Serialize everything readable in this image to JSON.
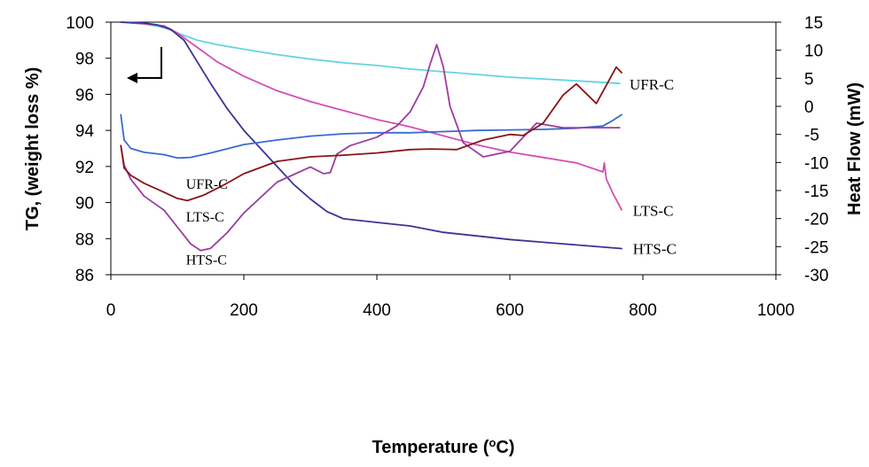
{
  "chart_data": {
    "type": "line",
    "xlabel": "Temperature (°C)",
    "xlabel_main": "Temperature (",
    "xlabel_sup": "o",
    "xlabel_end": "C)",
    "ylabel": "TG, (weight loss %)",
    "y2label": "Heat Flow (mW)",
    "xlim": [
      0,
      1000
    ],
    "ylim": [
      86,
      100
    ],
    "y2lim": [
      -30,
      15
    ],
    "x_ticks": [
      "0",
      "200",
      "400",
      "600",
      "800",
      "1000"
    ],
    "y_ticks": [
      "86",
      "88",
      "90",
      "92",
      "94",
      "96",
      "98",
      "100"
    ],
    "y2_ticks": [
      "-30",
      "-25",
      "-20",
      "-15",
      "-10",
      "-5",
      "0",
      "5",
      "10",
      "15"
    ],
    "grid": false,
    "legend": "none",
    "series": [
      {
        "name": "UFR-C",
        "kind": "TG",
        "axis": "left",
        "color": "#66d3e0",
        "x": [
          15,
          50,
          80,
          100,
          130,
          160,
          200,
          250,
          300,
          350,
          400,
          450,
          500,
          550,
          600,
          650,
          700,
          765
        ],
        "y": [
          100,
          99.9,
          99.7,
          99.4,
          99.0,
          98.75,
          98.5,
          98.2,
          97.95,
          97.75,
          97.6,
          97.4,
          97.25,
          97.1,
          96.95,
          96.85,
          96.75,
          96.6
        ]
      },
      {
        "name": "LTS-C",
        "kind": "TG",
        "axis": "left",
        "color": "#d24fb4",
        "x": [
          15,
          50,
          80,
          100,
          130,
          160,
          200,
          250,
          300,
          350,
          400,
          450,
          500,
          550,
          600,
          650,
          700,
          740,
          742,
          745,
          755,
          768
        ],
        "y": [
          100,
          99.9,
          99.8,
          99.4,
          98.6,
          97.8,
          97.0,
          96.2,
          95.6,
          95.1,
          94.6,
          94.2,
          93.7,
          93.2,
          92.8,
          92.5,
          92.2,
          91.7,
          92.2,
          91.3,
          90.5,
          89.6
        ]
      },
      {
        "name": "HTS-C",
        "kind": "TG",
        "axis": "left",
        "color": "#3a3494",
        "x": [
          15,
          50,
          70,
          90,
          110,
          130,
          150,
          175,
          200,
          225,
          250,
          275,
          300,
          325,
          350,
          400,
          450,
          500,
          550,
          600,
          650,
          700,
          768
        ],
        "y": [
          100,
          99.95,
          99.85,
          99.6,
          99.0,
          97.8,
          96.6,
          95.2,
          94.0,
          93.0,
          92.0,
          91.0,
          90.2,
          89.5,
          89.1,
          88.9,
          88.7,
          88.35,
          88.15,
          87.95,
          87.8,
          87.65,
          87.45
        ]
      },
      {
        "name": "UFR-C",
        "kind": "DSC",
        "axis": "right",
        "color": "#3a6ad1",
        "x": [
          15,
          20,
          30,
          50,
          80,
          100,
          120,
          150,
          200,
          250,
          300,
          350,
          400,
          450,
          500,
          550,
          600,
          650,
          700,
          740,
          755,
          768
        ],
        "y": [
          -1.5,
          -6,
          -7.5,
          -8.2,
          -8.6,
          -9.2,
          -9.1,
          -8.3,
          -6.8,
          -6,
          -5.3,
          -4.9,
          -4.7,
          -4.7,
          -4.5,
          -4.3,
          -4.2,
          -4.1,
          -3.9,
          -3.5,
          -2.5,
          -1.5
        ]
      },
      {
        "name": "LTS-C",
        "kind": "DSC",
        "axis": "right",
        "color": "#9b3d9e",
        "x": [
          15,
          20,
          30,
          50,
          80,
          100,
          120,
          135,
          150,
          175,
          200,
          250,
          300,
          320,
          330,
          340,
          360,
          400,
          430,
          450,
          470,
          480,
          490,
          500,
          510,
          530,
          560,
          600,
          640,
          680,
          720,
          765
        ],
        "y": [
          -7,
          -10.5,
          -13,
          -16,
          -18.5,
          -21.5,
          -24.5,
          -25.7,
          -25.3,
          -22.5,
          -19,
          -13.5,
          -10.8,
          -12,
          -11.8,
          -8.5,
          -7,
          -5.5,
          -3.5,
          -1,
          3.5,
          7.5,
          11,
          7,
          0,
          -6.5,
          -9,
          -8,
          -3,
          -3.8,
          -3.8,
          -3.8
        ]
      },
      {
        "name": "HTS-C",
        "kind": "DSC",
        "axis": "right",
        "color": "#8a1416",
        "x": [
          15,
          20,
          30,
          50,
          80,
          100,
          115,
          140,
          170,
          200,
          250,
          300,
          350,
          400,
          450,
          480,
          520,
          560,
          600,
          620,
          650,
          680,
          700,
          730,
          760,
          768
        ],
        "y": [
          -7,
          -11,
          -12.3,
          -13.7,
          -15.3,
          -16.4,
          -16.8,
          -15.8,
          -14,
          -12,
          -9.8,
          -9,
          -8.7,
          -8.3,
          -7.7,
          -7.6,
          -7.7,
          -6,
          -5,
          -5.2,
          -3,
          2,
          4,
          0.5,
          7,
          6
        ]
      }
    ],
    "annotations": [
      {
        "text": "UFR-C",
        "x": 780,
        "y": 96.55,
        "axis": "left",
        "size": "big"
      },
      {
        "text": "LTS-C",
        "x": 785,
        "y": 89.55,
        "axis": "left",
        "size": "big"
      },
      {
        "text": "HTS-C",
        "x": 785,
        "y": 87.45,
        "axis": "left",
        "size": "big"
      },
      {
        "text": "UFR-C",
        "x": 113,
        "y": 91.05,
        "axis": "left",
        "size": "small"
      },
      {
        "text": "LTS-C",
        "x": 113,
        "y": 89.25,
        "axis": "left",
        "size": "small"
      },
      {
        "text": "HTS-C",
        "x": 113,
        "y": 86.85,
        "axis": "left",
        "size": "small"
      }
    ]
  }
}
